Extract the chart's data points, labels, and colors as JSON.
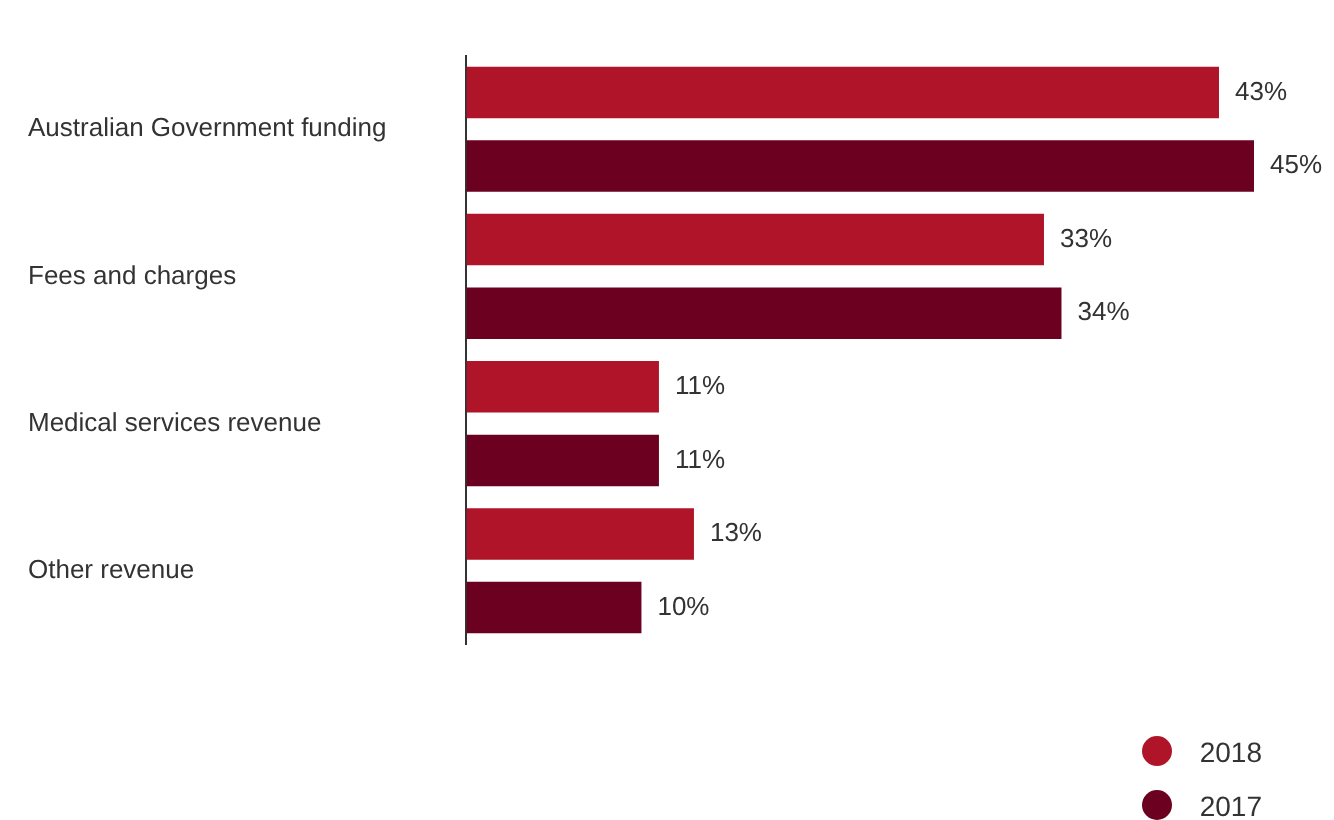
{
  "chart_data": {
    "type": "bar",
    "orientation": "horizontal",
    "categories": [
      "Australian Government funding",
      "Fees and charges",
      "Medical services revenue",
      "Other revenue"
    ],
    "series": [
      {
        "name": "2018",
        "color": "#b01428",
        "values": [
          43,
          33,
          11,
          13
        ],
        "value_labels": [
          "43%",
          "33%",
          "11%",
          "13%"
        ]
      },
      {
        "name": "2017",
        "color": "#6b0020",
        "values": [
          45,
          34,
          11,
          10
        ],
        "value_labels": [
          "45%",
          "34%",
          "11%",
          "10%"
        ]
      }
    ],
    "grid": false,
    "legend": "bottom right"
  }
}
